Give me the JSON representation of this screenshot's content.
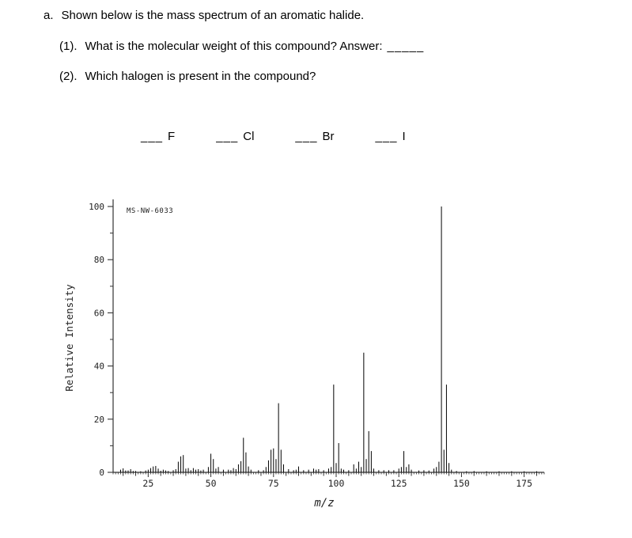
{
  "problem": {
    "part_label": "a.",
    "intro": "Shown below is the mass spectrum of an aromatic halide.",
    "q1_label": "(1).",
    "q1_text": "What is the molecular weight of this compound? Answer:",
    "q1_blank": "_____",
    "q2_label": "(2).",
    "q2_text": "Which halogen is present in the compound?",
    "options": [
      {
        "blank": "___",
        "label": "F"
      },
      {
        "blank": "___",
        "label": "Cl"
      },
      {
        "blank": "___",
        "label": "Br"
      },
      {
        "blank": "___",
        "label": "I"
      }
    ]
  },
  "chart_data": {
    "type": "bar",
    "subtype": "mass-spectrum",
    "title": "",
    "annotation": "MS-NW-6033",
    "xlabel": "m/z",
    "ylabel": "Relative Intensity",
    "xlim": [
      11,
      183
    ],
    "ylim": [
      0,
      100
    ],
    "x_ticks": [
      25,
      50,
      75,
      100,
      125,
      150,
      175
    ],
    "y_ticks": [
      0,
      20,
      40,
      60,
      80,
      100
    ],
    "grid": false,
    "legend": false,
    "base_peak_mz": 142,
    "molecular_ion_mz": 142,
    "m_plus_2_ratio_percent": 33,
    "peaks": [
      [
        14,
        1
      ],
      [
        15,
        1.5
      ],
      [
        16,
        0.7
      ],
      [
        17,
        0.7
      ],
      [
        18,
        1.2
      ],
      [
        19,
        0.5
      ],
      [
        20,
        0.5
      ],
      [
        22,
        0.4
      ],
      [
        24,
        0.7
      ],
      [
        25,
        1
      ],
      [
        26,
        1.6
      ],
      [
        27,
        2.2
      ],
      [
        28,
        2.4
      ],
      [
        29,
        1.4
      ],
      [
        30,
        0.6
      ],
      [
        31,
        1
      ],
      [
        32,
        0.7
      ],
      [
        33,
        0.5
      ],
      [
        35,
        0.8
      ],
      [
        36,
        1.2
      ],
      [
        37,
        4
      ],
      [
        38,
        6
      ],
      [
        39,
        6.5
      ],
      [
        40,
        1.4
      ],
      [
        41,
        1.6
      ],
      [
        42,
        0.8
      ],
      [
        43,
        1.6
      ],
      [
        44,
        1
      ],
      [
        45,
        1.2
      ],
      [
        46,
        0.7
      ],
      [
        47,
        1
      ],
      [
        49,
        2
      ],
      [
        50,
        7
      ],
      [
        51,
        5
      ],
      [
        52,
        1.4
      ],
      [
        53,
        2
      ],
      [
        55,
        1
      ],
      [
        57,
        1
      ],
      [
        58,
        0.8
      ],
      [
        59,
        1.6
      ],
      [
        60,
        1.2
      ],
      [
        61,
        3
      ],
      [
        62,
        4.2
      ],
      [
        63,
        13
      ],
      [
        64,
        7.5
      ],
      [
        65,
        2.2
      ],
      [
        66,
        1
      ],
      [
        69,
        0.8
      ],
      [
        71,
        0.8
      ],
      [
        72,
        2
      ],
      [
        73,
        4.5
      ],
      [
        74,
        8.5
      ],
      [
        75,
        9
      ],
      [
        76,
        5
      ],
      [
        77,
        26
      ],
      [
        78,
        8.5
      ],
      [
        79,
        3
      ],
      [
        81,
        1.2
      ],
      [
        83,
        0.8
      ],
      [
        84,
        1
      ],
      [
        85,
        2.2
      ],
      [
        87,
        0.8
      ],
      [
        89,
        1
      ],
      [
        91,
        1.4
      ],
      [
        92,
        1
      ],
      [
        93,
        1.2
      ],
      [
        95,
        0.8
      ],
      [
        97,
        1.4
      ],
      [
        98,
        2
      ],
      [
        99,
        33
      ],
      [
        100,
        3.5
      ],
      [
        101,
        11
      ],
      [
        102,
        1.4
      ],
      [
        103,
        1
      ],
      [
        105,
        0.8
      ],
      [
        107,
        3
      ],
      [
        108,
        1.4
      ],
      [
        109,
        4
      ],
      [
        110,
        2
      ],
      [
        111,
        45
      ],
      [
        112,
        5
      ],
      [
        113,
        15.5
      ],
      [
        114,
        8
      ],
      [
        115,
        1.4
      ],
      [
        117,
        0.8
      ],
      [
        119,
        0.8
      ],
      [
        121,
        0.8
      ],
      [
        123,
        0.8
      ],
      [
        125,
        1.4
      ],
      [
        126,
        2
      ],
      [
        127,
        8
      ],
      [
        128,
        2
      ],
      [
        129,
        3
      ],
      [
        130,
        1
      ],
      [
        133,
        0.7
      ],
      [
        135,
        0.8
      ],
      [
        137,
        0.7
      ],
      [
        139,
        1.4
      ],
      [
        140,
        2
      ],
      [
        141,
        4
      ],
      [
        142,
        100
      ],
      [
        143,
        8.5
      ],
      [
        144,
        33
      ],
      [
        145,
        3.5
      ],
      [
        146,
        1
      ],
      [
        148,
        0.5
      ],
      [
        152,
        0.4
      ],
      [
        155,
        0.5
      ],
      [
        160,
        0.4
      ],
      [
        165,
        0.4
      ],
      [
        170,
        0.4
      ],
      [
        175,
        0.4
      ],
      [
        180,
        0.4
      ]
    ]
  }
}
